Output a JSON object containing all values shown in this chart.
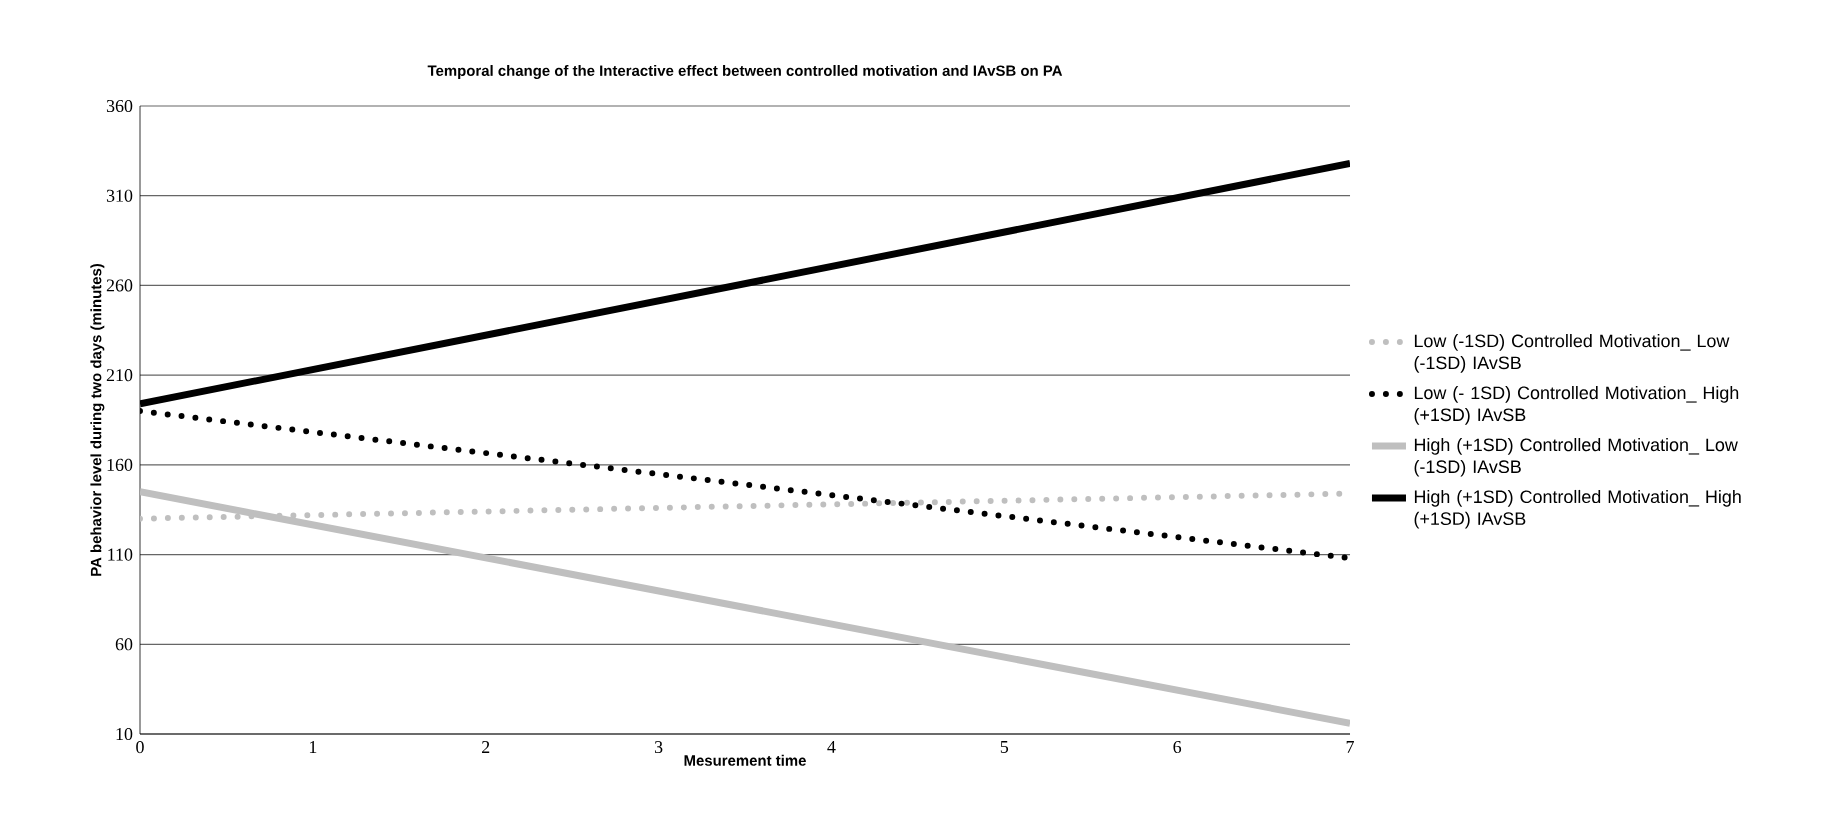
{
  "chart_data": {
    "type": "line",
    "title": "Temporal change of the Interactive effect between controlled motivation and IAvSB on PA",
    "xlabel": "Mesurement time",
    "ylabel": "PA behavior  level during two days (minutes)",
    "x": [
      0,
      7
    ],
    "series": [
      {
        "name": "Low (-1SD) Controlled Motivation_ Low (-1SD) IAvSB",
        "color": "#bfbfbf",
        "line_style": "dotted",
        "values": [
          130,
          144
        ]
      },
      {
        "name": "Low (- 1SD) Controlled Motivation_ High (+1SD) IAvSB",
        "color": "#000000",
        "line_style": "dotted",
        "values": [
          190,
          108
        ]
      },
      {
        "name": "High (+1SD) Controlled Motivation_ Low (-1SD) IAvSB",
        "color": "#bfbfbf",
        "line_style": "solid",
        "values": [
          145,
          16
        ]
      },
      {
        "name": "High (+1SD) Controlled Motivation_ High (+1SD) IAvSB",
        "color": "#000000",
        "line_style": "solid",
        "values": [
          194,
          328
        ]
      }
    ],
    "xlim": [
      0,
      7
    ],
    "xticks": [
      0,
      1,
      2,
      3,
      4,
      5,
      6,
      7
    ],
    "ylim": [
      10,
      360
    ],
    "yticks": [
      10,
      60,
      110,
      160,
      210,
      260,
      310,
      360
    ],
    "grid": "y",
    "legend": "right",
    "marker": "none"
  }
}
